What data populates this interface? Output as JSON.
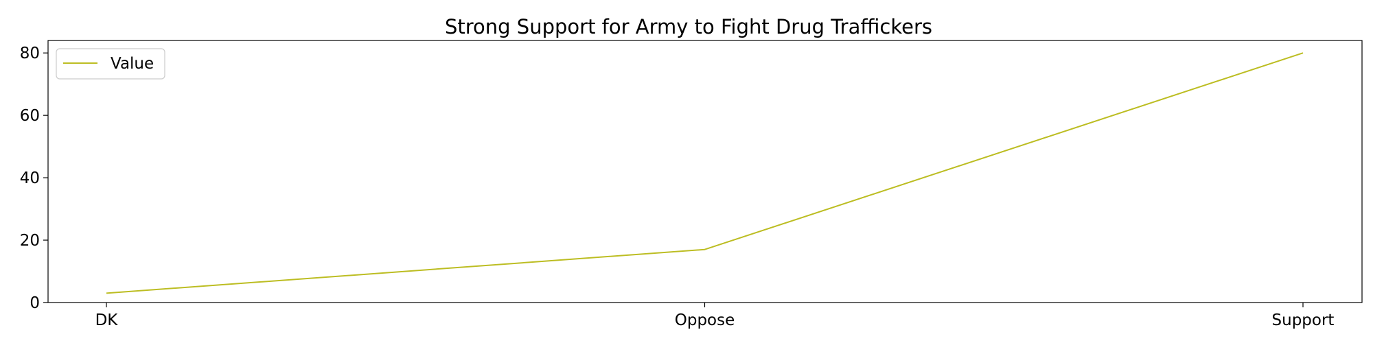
{
  "chart_data": {
    "type": "line",
    "title": "Strong Support for Army to Fight Drug Traffickers",
    "xlabel": "",
    "ylabel": "",
    "categories": [
      "DK",
      "Oppose",
      "Support"
    ],
    "series": [
      {
        "name": "Value",
        "values": [
          3,
          17,
          80
        ],
        "color": "#bcbd22"
      }
    ],
    "ylim": [
      0,
      84
    ],
    "yticks": [
      0,
      20,
      40,
      60,
      80
    ],
    "grid": false,
    "legend": {
      "position": "top-left"
    }
  }
}
